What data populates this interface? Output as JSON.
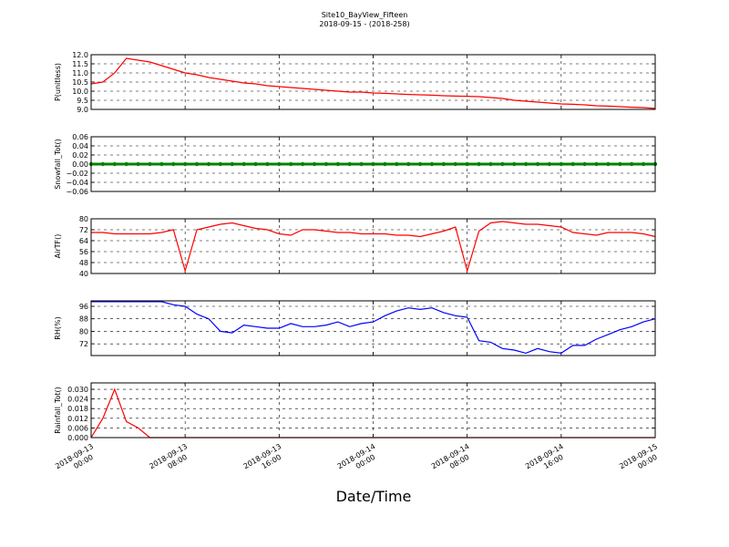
{
  "title": "Site10_BayView_Fifteen",
  "subtitle": "2018-09-15 - (2018-258)",
  "xlabel": "Date/Time",
  "x": [
    "2018-09-13 00:00",
    "2018-09-13 01:00",
    "2018-09-13 02:00",
    "2018-09-13 03:00",
    "2018-09-13 04:00",
    "2018-09-13 05:00",
    "2018-09-13 06:00",
    "2018-09-13 07:00",
    "2018-09-13 08:00",
    "2018-09-13 09:00",
    "2018-09-13 10:00",
    "2018-09-13 11:00",
    "2018-09-13 12:00",
    "2018-09-13 13:00",
    "2018-09-13 14:00",
    "2018-09-13 15:00",
    "2018-09-13 16:00",
    "2018-09-13 17:00",
    "2018-09-13 18:00",
    "2018-09-13 19:00",
    "2018-09-13 20:00",
    "2018-09-13 21:00",
    "2018-09-13 22:00",
    "2018-09-13 23:00",
    "2018-09-14 00:00",
    "2018-09-14 01:00",
    "2018-09-14 02:00",
    "2018-09-14 03:00",
    "2018-09-14 04:00",
    "2018-09-14 05:00",
    "2018-09-14 06:00",
    "2018-09-14 07:00",
    "2018-09-14 08:00",
    "2018-09-14 09:00",
    "2018-09-14 10:00",
    "2018-09-14 11:00",
    "2018-09-14 12:00",
    "2018-09-14 13:00",
    "2018-09-14 14:00",
    "2018-09-14 15:00",
    "2018-09-14 16:00",
    "2018-09-14 17:00",
    "2018-09-14 18:00",
    "2018-09-14 19:00",
    "2018-09-14 20:00",
    "2018-09-14 21:00",
    "2018-09-14 22:00",
    "2018-09-14 23:00",
    "2018-09-15 00:00"
  ],
  "xlim": [
    "2018-09-13 00:00",
    "2018-09-15 00:00"
  ],
  "xticks": [
    {
      "value": "2018-09-13 00:00",
      "label": [
        "2018-09-13",
        "00:00"
      ]
    },
    {
      "value": "2018-09-13 08:00",
      "label": [
        "2018-09-13",
        "08:00"
      ]
    },
    {
      "value": "2018-09-13 16:00",
      "label": [
        "2018-09-13",
        "16:00"
      ]
    },
    {
      "value": "2018-09-14 00:00",
      "label": [
        "2018-09-14",
        "00:00"
      ]
    },
    {
      "value": "2018-09-14 08:00",
      "label": [
        "2018-09-14",
        "08:00"
      ]
    },
    {
      "value": "2018-09-14 16:00",
      "label": [
        "2018-09-14",
        "16:00"
      ]
    },
    {
      "value": "2018-09-15 00:00",
      "label": [
        "2018-09-15",
        "00:00"
      ]
    }
  ],
  "grid": true,
  "chart_data": [
    {
      "type": "line",
      "ylabel": "P(unitless)",
      "color": "#ff0000",
      "ylim": [
        9,
        12
      ],
      "yticks": [
        {
          "value": 9,
          "label": "9.0"
        },
        9.5,
        {
          "value": 10,
          "label": "10.0"
        },
        10.5,
        {
          "value": 11,
          "label": "11.0"
        },
        11.5,
        {
          "value": 12,
          "label": "12.0"
        }
      ],
      "values": [
        10.4,
        10.5,
        11.0,
        11.8,
        11.7,
        11.6,
        11.4,
        11.2,
        11.0,
        10.9,
        10.75,
        10.65,
        10.55,
        10.45,
        10.4,
        10.3,
        10.25,
        10.2,
        10.15,
        10.1,
        10.05,
        10.0,
        9.95,
        9.95,
        9.9,
        9.88,
        9.85,
        9.82,
        9.8,
        9.78,
        9.75,
        9.73,
        9.72,
        9.7,
        9.65,
        9.6,
        9.5,
        9.45,
        9.4,
        9.35,
        9.3,
        9.28,
        9.25,
        9.2,
        9.18,
        9.15,
        9.12,
        9.1,
        9.05
      ]
    },
    {
      "type": "line",
      "ylabel": "Snowfall_Tot()",
      "color": "#008000",
      "marker": true,
      "ylim": [
        -0.06,
        0.06
      ],
      "yticks": [
        {
          "value": -0.06,
          "label": "−0.06"
        },
        {
          "value": -0.04,
          "label": "−0.04"
        },
        {
          "value": -0.02,
          "label": "−0.02"
        },
        {
          "value": 0,
          "label": "0.00"
        },
        0.02,
        0.04,
        0.06
      ],
      "values": [
        0,
        0,
        0,
        0,
        0,
        0,
        0,
        0,
        0,
        0,
        0,
        0,
        0,
        0,
        0,
        0,
        0,
        0,
        0,
        0,
        0,
        0,
        0,
        0,
        0,
        0,
        0,
        0,
        0,
        0,
        0,
        0,
        0,
        0,
        0,
        0,
        0,
        0,
        0,
        0,
        0,
        0,
        0,
        0,
        0,
        0,
        0,
        0,
        0
      ]
    },
    {
      "type": "line",
      "ylabel": "AirTF()",
      "color": "#ff0000",
      "ylim": [
        40,
        80
      ],
      "yticks": [
        40,
        48,
        56,
        64,
        72,
        80
      ],
      "values": [
        70,
        70,
        69,
        69,
        69,
        69,
        70,
        72,
        42,
        72,
        74,
        76,
        77,
        75,
        73,
        72,
        69,
        68,
        72,
        72,
        71,
        70,
        70,
        69,
        69,
        69,
        68,
        68,
        67,
        69,
        71,
        74,
        42,
        71,
        77,
        78,
        77,
        76,
        76,
        75,
        74,
        70,
        69,
        68,
        70,
        70,
        70,
        69,
        67
      ]
    },
    {
      "type": "line",
      "ylabel": "RH(%)",
      "color": "#0000ff",
      "ylim": [
        64.5,
        99.5
      ],
      "yticks": [
        72,
        80,
        88,
        96
      ],
      "values": [
        99,
        99,
        99,
        99,
        99,
        99,
        99,
        97,
        96,
        91,
        88,
        80,
        79,
        84,
        83,
        82,
        82,
        85,
        83,
        83,
        84,
        86,
        83,
        85,
        86,
        90,
        93,
        95,
        94,
        95,
        92,
        90,
        89,
        74,
        73,
        69,
        68,
        66,
        69,
        67,
        66,
        71,
        71,
        75,
        78,
        81,
        83,
        86,
        88
      ]
    },
    {
      "type": "line",
      "ylabel": "Rainfall_Tot()",
      "color": "#ff0000",
      "ylim": [
        0,
        0.034
      ],
      "yticks": [
        {
          "value": 0,
          "label": "0.000"
        },
        0.006,
        0.012,
        0.018,
        0.024,
        {
          "value": 0.03,
          "label": "0.030"
        }
      ],
      "values": [
        0,
        0.012,
        0.03,
        0.01,
        0.006,
        0,
        0,
        0,
        0,
        0,
        0,
        0,
        0,
        0,
        0,
        0,
        0,
        0,
        0,
        0,
        0,
        0,
        0,
        0,
        0,
        0,
        0,
        0,
        0,
        0,
        0,
        0,
        0,
        0,
        0,
        0,
        0,
        0,
        0,
        0,
        0,
        0,
        0,
        0,
        0,
        0,
        0,
        0,
        0
      ]
    }
  ]
}
